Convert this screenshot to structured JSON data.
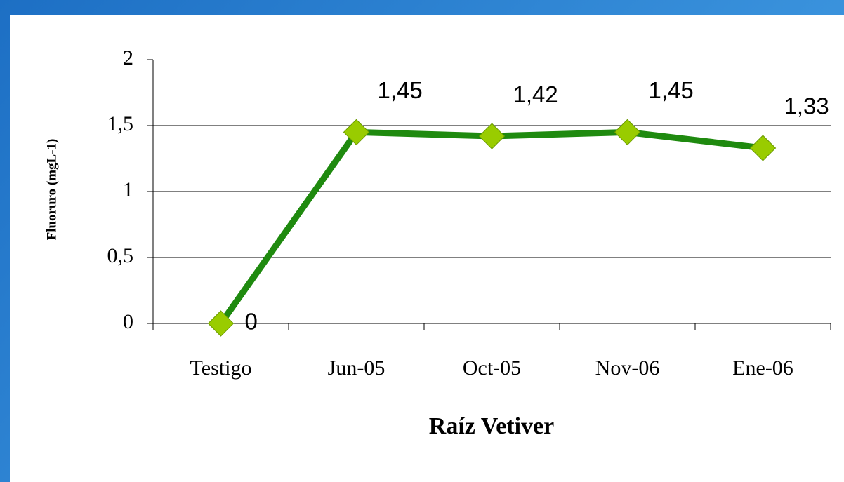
{
  "chart_data": {
    "type": "line",
    "x_label": "Raíz Vetiver",
    "y_label": "Fluoruro (mgL-1)",
    "categories": [
      "Testigo",
      "Jun-05",
      "Oct-05",
      "Nov-06",
      "Ene-06"
    ],
    "series": [
      {
        "name": "Fluoruro",
        "color": "#1f8a0f",
        "marker_color": "#99cc00",
        "values": [
          0,
          1.45,
          1.42,
          1.45,
          1.33
        ],
        "value_labels": [
          "0",
          "1,45",
          "1,42",
          "1,45",
          "1,33"
        ]
      }
    ],
    "ylim": [
      0,
      2
    ],
    "yticks": [
      0,
      {
        "value": 0.5,
        "label": "0,5"
      },
      1,
      {
        "value": 1.5,
        "label": "1,5"
      },
      2
    ],
    "grid": true
  }
}
